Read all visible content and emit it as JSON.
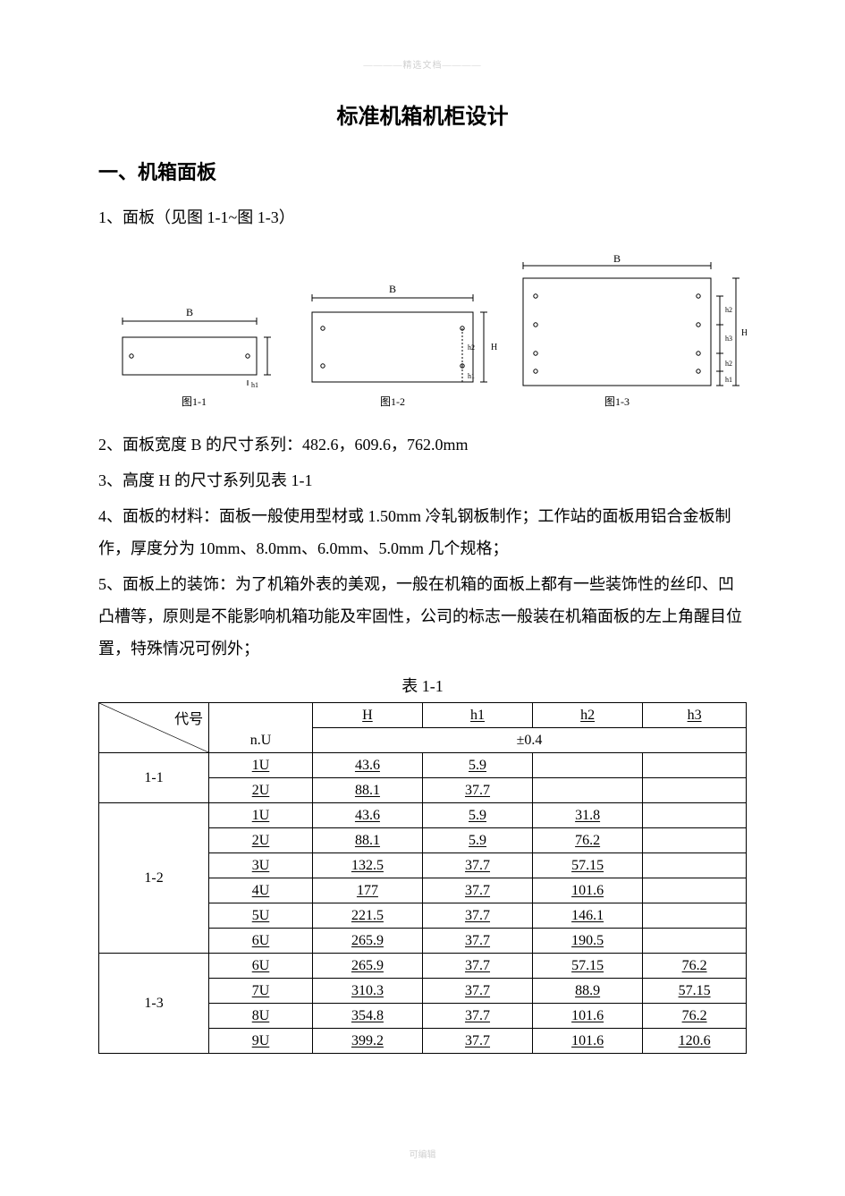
{
  "watermark_top": "————精选文档————",
  "watermark_bottom": "可编辑",
  "title": "标准机箱机柜设计",
  "section1": {
    "heading": "一、机箱面板",
    "item1": "1、面板（见图 1-1~图 1-3）",
    "item2": "2、面板宽度 B 的尺寸系列：482.6，609.6，762.0mm",
    "item3": "3、高度 H 的尺寸系列见表 1-1",
    "item4": "4、面板的材料：面板一般使用型材或 1.50mm 冷轧钢板制作；工作站的面板用铝合金板制作，厚度分为 10mm、8.0mm、6.0mm、5.0mm 几个规格；",
    "item5": "5、面板上的装饰：为了机箱外表的美观，一般在机箱的面板上都有一些装饰性的丝印、凹凸槽等，原则是不能影响机箱功能及牢固性，公司的标志一般装在机箱面板的左上角醒目位置，特殊情况可例外；"
  },
  "diagrams": {
    "label_B": "B",
    "label_H": "H",
    "label_h1": "h1",
    "label_h2": "h2",
    "label_h3": "h3",
    "caption1": "图1-1",
    "caption2": "图1-2",
    "caption3": "图1-3",
    "stroke_color": "#000000",
    "text_font_size": 10
  },
  "table": {
    "caption": "表 1-1",
    "diag_header": "代号",
    "columns": [
      "n.U",
      "H",
      "h1",
      "h2",
      "h3"
    ],
    "tolerance": "±0.4",
    "groups": [
      {
        "code": "1-1",
        "rows": [
          [
            "1U",
            "43.6",
            "5.9",
            "",
            ""
          ],
          [
            "2U",
            "88.1",
            "37.7",
            "",
            ""
          ]
        ]
      },
      {
        "code": "1-2",
        "rows": [
          [
            "1U",
            "43.6",
            "5.9",
            "31.8",
            ""
          ],
          [
            "2U",
            "88.1",
            "5.9",
            "76.2",
            ""
          ],
          [
            "3U",
            "132.5",
            "37.7",
            "57.15",
            ""
          ],
          [
            "4U",
            "177",
            "37.7",
            "101.6",
            ""
          ],
          [
            "5U",
            "221.5",
            "37.7",
            "146.1",
            ""
          ],
          [
            "6U",
            "265.9",
            "37.7",
            "190.5",
            ""
          ]
        ]
      },
      {
        "code": "1-3",
        "rows": [
          [
            "6U",
            "265.9",
            "37.7",
            "57.15",
            "76.2"
          ],
          [
            "7U",
            "310.3",
            "37.7",
            "88.9",
            "57.15"
          ],
          [
            "8U",
            "354.8",
            "37.7",
            "101.6",
            "76.2"
          ],
          [
            "9U",
            "399.2",
            "37.7",
            "101.6",
            "120.6"
          ]
        ]
      }
    ]
  }
}
